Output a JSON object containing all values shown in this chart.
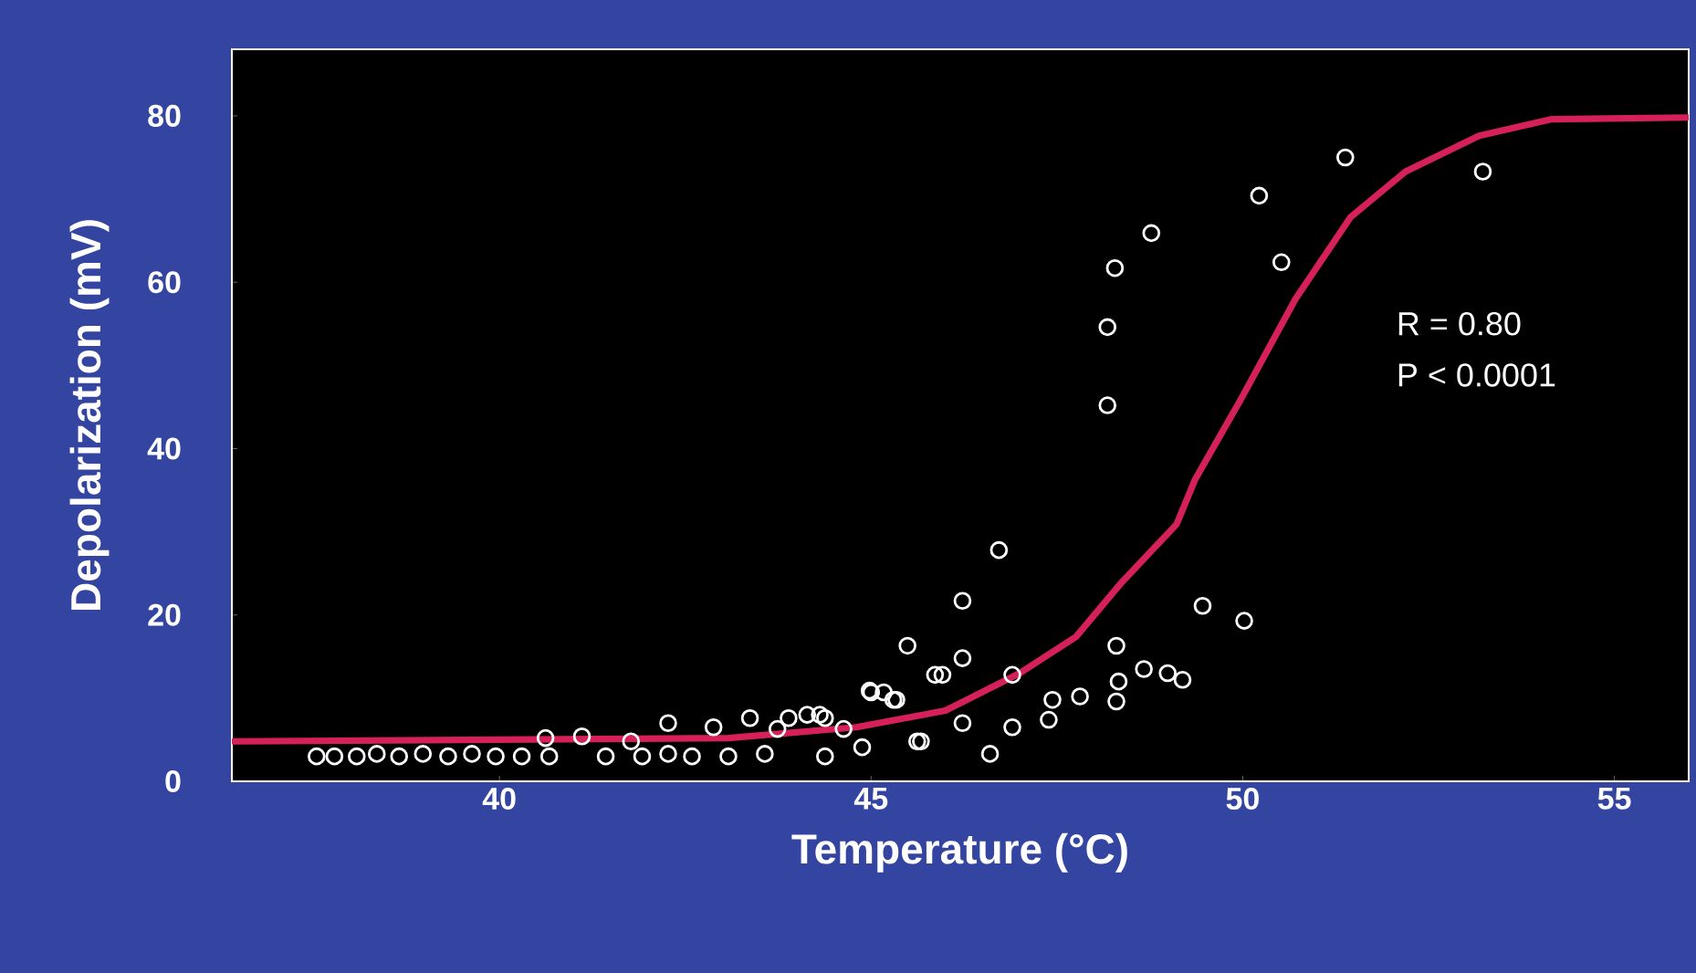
{
  "chart_data": {
    "type": "scatter",
    "xlabel": "Temperature (°C)",
    "ylabel": "Depolarization (mV)",
    "xlim": [
      36.4,
      56
    ],
    "ylim": [
      0,
      88
    ],
    "xticks": [
      40,
      45,
      50,
      55
    ],
    "yticks": [
      0,
      20,
      40,
      60,
      80
    ],
    "annotations": [
      "R = 0.80",
      "P < 0.0001"
    ],
    "series": [
      {
        "marker": "circle",
        "color": "#ffffff",
        "x": [
          37.54,
          37.78,
          38.08,
          38.35,
          38.65,
          38.97,
          39.31,
          39.63,
          39.95,
          40.3,
          40.62,
          41.11,
          40.67,
          41.43,
          41.77,
          41.92,
          42.27,
          42.27,
          42.59,
          42.88,
          43.08,
          43.37,
          43.57,
          43.74,
          43.89,
          44.14,
          44.38,
          44.38,
          44.63,
          44.88,
          45.0,
          45.3,
          45.62,
          45.86,
          45.49,
          46.23,
          46.72,
          45.96,
          46.23,
          46.9,
          48.3,
          49.46,
          50.02,
          48.33,
          48.67,
          48.99,
          49.19,
          47.44,
          47.81,
          48.3,
          47.39,
          46.9,
          46.6,
          45.67,
          45.17,
          44.98,
          45.34,
          44.31,
          46.23,
          48.77,
          48.28,
          48.18,
          48.18,
          50.22,
          51.38,
          53.23,
          50.52
        ],
        "values": [
          3.0,
          3.0,
          3.0,
          3.3,
          3.0,
          3.3,
          3.0,
          3.3,
          3.0,
          3.0,
          5.2,
          5.4,
          3.0,
          3.0,
          4.8,
          3.0,
          7.0,
          3.3,
          3.0,
          6.5,
          3.0,
          7.6,
          3.3,
          6.3,
          7.6,
          8.0,
          7.6,
          3.0,
          6.3,
          4.1,
          10.7,
          9.8,
          4.8,
          12.8,
          16.3,
          21.7,
          27.8,
          12.8,
          14.8,
          12.8,
          16.3,
          21.1,
          19.3,
          12.0,
          13.5,
          13.0,
          12.2,
          9.8,
          10.2,
          9.6,
          7.4,
          6.5,
          3.3,
          4.8,
          10.7,
          10.9,
          9.8,
          8.0,
          7.0,
          65.9,
          61.7,
          54.6,
          45.2,
          70.4,
          75.0,
          73.3,
          62.4
        ]
      },
      {
        "type": "line",
        "marker": "none",
        "color": "#d6205a",
        "x": [
          36.43,
          43.08,
          44.8,
          46.0,
          47.0,
          47.76,
          48.37,
          49.11,
          49.36,
          49.98,
          50.71,
          51.45,
          52.19,
          53.18,
          54.16,
          56.0
        ],
        "values": [
          4.8,
          5.2,
          6.5,
          8.5,
          13,
          17.4,
          23.9,
          30.9,
          36.3,
          46,
          58,
          67.8,
          73.3,
          77.6,
          79.6,
          79.8
        ]
      }
    ]
  }
}
